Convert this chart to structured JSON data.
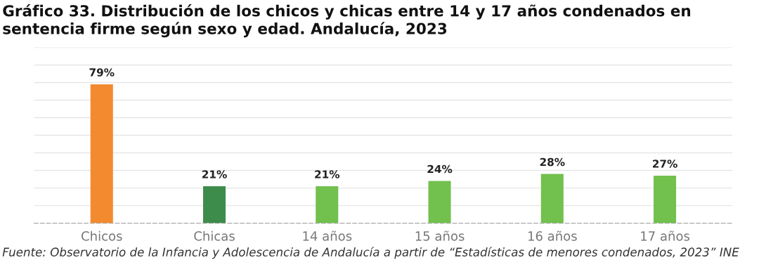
{
  "chart_data": {
    "type": "bar",
    "title": "Gráfico 33. Distribución de los chicos y chicas entre 14 y 17 años condenados en\nsentencia firme según sexo y edad. Andalucía, 2023",
    "categories": [
      "Chicos",
      "Chicas",
      "14 años",
      "15 años",
      "16 años",
      "17 años"
    ],
    "values": [
      79,
      21,
      21,
      24,
      28,
      27
    ],
    "value_labels": [
      "79%",
      "21%",
      "21%",
      "24%",
      "28%",
      "27%"
    ],
    "colors": [
      "#f28a30",
      "#3d8c4c",
      "#72c04e",
      "#72c04e",
      "#72c04e",
      "#72c04e"
    ],
    "ylim": [
      0,
      100
    ],
    "yticks": [
      {
        "value": 0,
        "label": null
      },
      {
        "value": 10,
        "label": null
      },
      {
        "value": 20,
        "label": null
      },
      {
        "value": 30,
        "label": null
      },
      {
        "value": 40,
        "label": null
      },
      {
        "value": 50,
        "label": null
      },
      {
        "value": 60,
        "label": null
      },
      {
        "value": 70,
        "label": null
      },
      {
        "value": 80,
        "label": null
      },
      {
        "value": 90,
        "label": null
      },
      {
        "value": 100,
        "label": null
      }
    ],
    "grid": "y",
    "tick_labels": "x",
    "annotations": [
      "Fuente: Observatorio de la Infancia y Adolescencia de Andalucía a partir de “Estadísticas de menores condenados, 2023” INE"
    ]
  }
}
